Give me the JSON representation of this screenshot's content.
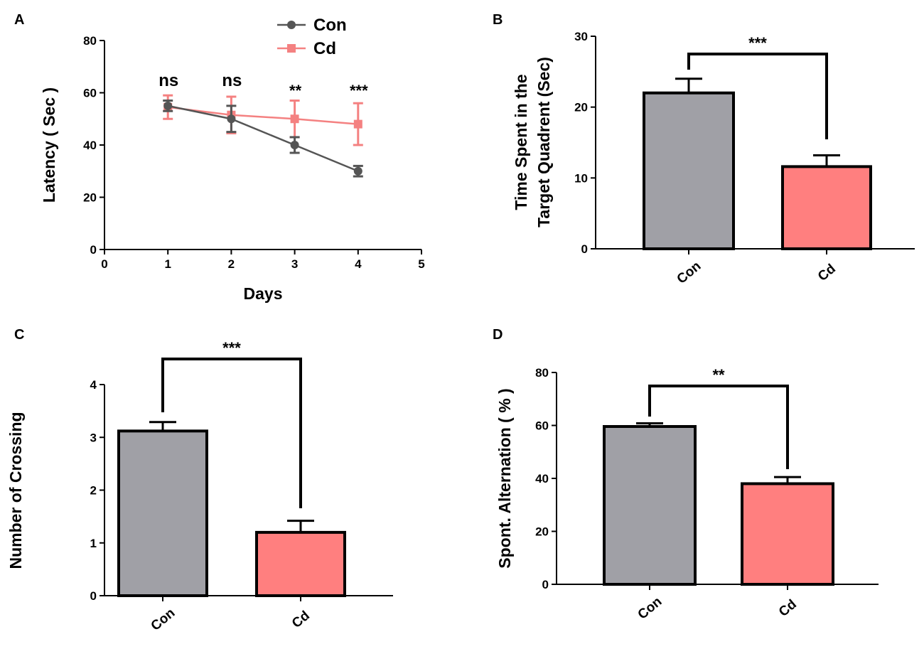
{
  "figure": {
    "panels": [
      "A",
      "B",
      "C",
      "D"
    ]
  },
  "colors": {
    "con_line": "#555555",
    "con_bar": "#a0a0a6",
    "cd": "#f48181",
    "cd_bar": "#ff7f7f",
    "axis": "#000000"
  },
  "chart_data": [
    {
      "panel": "A",
      "type": "line",
      "title": "",
      "xlabel": "Days",
      "ylabel": "Latency ( Sec )",
      "xlim": [
        0,
        5
      ],
      "ylim": [
        0,
        80
      ],
      "xticks": [
        "0",
        "1",
        "2",
        "3",
        "4",
        "5"
      ],
      "yticks": [
        "0",
        "20",
        "40",
        "60",
        "80"
      ],
      "grid": false,
      "legend": "top-center",
      "x": [
        1,
        2,
        3,
        4
      ],
      "series": [
        {
          "name": "Con",
          "values": [
            55,
            50,
            40,
            30
          ],
          "errors": [
            2,
            5,
            3,
            2
          ]
        },
        {
          "name": "Cd",
          "values": [
            54.5,
            51.5,
            50,
            48
          ],
          "errors": [
            4.5,
            7,
            7,
            8
          ]
        }
      ],
      "annotations": [
        "ns",
        "ns",
        "**",
        "***"
      ]
    },
    {
      "panel": "B",
      "type": "bar",
      "title": "",
      "xlabel": "",
      "ylabel": "Time Spent in the Target Quadrent (Sec)",
      "ylabel_lines": [
        "Time Spent in the",
        "Target Quadrent (Sec)"
      ],
      "ylim": [
        0,
        30
      ],
      "yticks": [
        "0",
        "10",
        "20",
        "30"
      ],
      "categories": [
        "Con",
        "Cd"
      ],
      "values": [
        22,
        11.6
      ],
      "errors": [
        2,
        1.6
      ],
      "significance": "***"
    },
    {
      "panel": "C",
      "type": "bar",
      "title": "",
      "xlabel": "",
      "ylabel": "Number of Crossing",
      "ylim": [
        0,
        4
      ],
      "yticks": [
        "0",
        "1",
        "2",
        "3",
        "4"
      ],
      "categories": [
        "Con",
        "Cd"
      ],
      "values": [
        3.12,
        1.2
      ],
      "errors": [
        0.17,
        0.22
      ],
      "significance": "***"
    },
    {
      "panel": "D",
      "type": "bar",
      "title": "",
      "xlabel": "",
      "ylabel": "Spont. Alternation ( % )",
      "ylim": [
        0,
        80
      ],
      "yticks": [
        "0",
        "20",
        "40",
        "60",
        "80"
      ],
      "categories": [
        "Con",
        "Cd"
      ],
      "values": [
        59.6,
        38
      ],
      "errors": [
        1.2,
        2.5
      ],
      "significance": "**"
    }
  ]
}
